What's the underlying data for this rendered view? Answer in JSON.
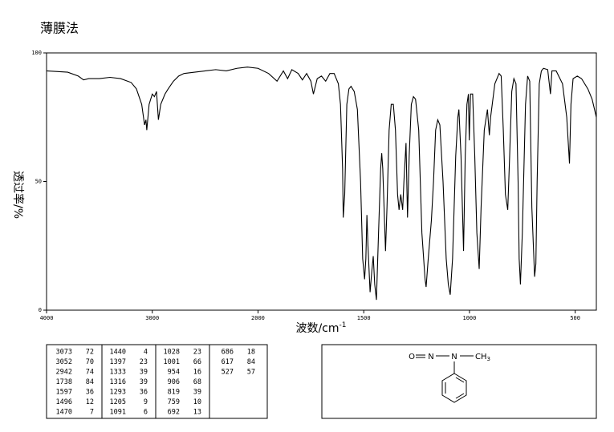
{
  "chart_data": {
    "type": "line",
    "title": "薄膜法",
    "x_label": {
      "text": "波数/cm",
      "superscript": "-1"
    },
    "y_label": "透过率/%",
    "xlim": [
      4000,
      400
    ],
    "ylim": [
      0,
      100
    ],
    "x_scale_change": 2000,
    "xticks": [
      4000,
      3000,
      2000,
      1500,
      1000,
      500
    ],
    "yticks": [
      0,
      50,
      100
    ],
    "color": "#000000",
    "x": [
      4000,
      3800,
      3700,
      3650,
      3600,
      3500,
      3400,
      3300,
      3200,
      3150,
      3100,
      3073,
      3060,
      3052,
      3030,
      3000,
      2980,
      2960,
      2942,
      2920,
      2880,
      2850,
      2800,
      2750,
      2700,
      2600,
      2500,
      2400,
      2300,
      2200,
      2100,
      2000,
      1950,
      1910,
      1880,
      1860,
      1840,
      1810,
      1790,
      1770,
      1750,
      1738,
      1720,
      1700,
      1680,
      1660,
      1640,
      1620,
      1610,
      1600,
      1597,
      1590,
      1580,
      1570,
      1560,
      1545,
      1530,
      1515,
      1505,
      1496,
      1490,
      1485,
      1480,
      1470,
      1462,
      1455,
      1448,
      1440,
      1430,
      1420,
      1415,
      1410,
      1397,
      1390,
      1380,
      1370,
      1360,
      1350,
      1340,
      1333,
      1325,
      1316,
      1310,
      1300,
      1293,
      1285,
      1275,
      1265,
      1255,
      1240,
      1225,
      1210,
      1205,
      1195,
      1180,
      1170,
      1160,
      1150,
      1140,
      1125,
      1110,
      1100,
      1091,
      1080,
      1065,
      1055,
      1050,
      1040,
      1028,
      1020,
      1012,
      1005,
      1001,
      995,
      985,
      975,
      965,
      954,
      945,
      930,
      915,
      906,
      900,
      880,
      860,
      850,
      840,
      830,
      819,
      810,
      800,
      790,
      780,
      770,
      765,
      759,
      750,
      735,
      725,
      715,
      705,
      692,
      686,
      680,
      670,
      660,
      650,
      630,
      617,
      610,
      590,
      560,
      540,
      527,
      520,
      510,
      490,
      470,
      440,
      420,
      400
    ],
    "series": [
      {
        "values": [
          93,
          92.5,
          91,
          89.5,
          90,
          90,
          90.5,
          90,
          88.5,
          86,
          80,
          72,
          74,
          70,
          80,
          84,
          83,
          85,
          74,
          80,
          84,
          86,
          89,
          91,
          92,
          92.5,
          93,
          93.5,
          93,
          94,
          94.5,
          94,
          92,
          89,
          93,
          90,
          93.5,
          92,
          89.5,
          92,
          89,
          84,
          90,
          91,
          89,
          92,
          92,
          88,
          80,
          55,
          36,
          45,
          80,
          86,
          87,
          85,
          78,
          50,
          20,
          12,
          20,
          37,
          25,
          7,
          15,
          21,
          10,
          4,
          30,
          55,
          61,
          55,
          23,
          40,
          70,
          80,
          80,
          70,
          45,
          39,
          45,
          39,
          50,
          65,
          36,
          60,
          80,
          83,
          82,
          70,
          30,
          12,
          9,
          20,
          35,
          50,
          70,
          74,
          72,
          50,
          20,
          10,
          6,
          20,
          60,
          75,
          78,
          60,
          23,
          60,
          80,
          84,
          66,
          84,
          84,
          60,
          30,
          16,
          40,
          70,
          78,
          68,
          75,
          88,
          92,
          91,
          70,
          45,
          39,
          60,
          85,
          90,
          88,
          50,
          20,
          10,
          30,
          80,
          91,
          89,
          40,
          13,
          18,
          50,
          88,
          93,
          94,
          93.5,
          84,
          93,
          93,
          88,
          75,
          57,
          80,
          90,
          91,
          90,
          86,
          82,
          75
        ]
      }
    ]
  },
  "peak_table": [
    [
      [
        3073,
        72
      ],
      [
        3052,
        70
      ],
      [
        2942,
        74
      ],
      [
        1738,
        84
      ],
      [
        1597,
        36
      ],
      [
        1496,
        12
      ],
      [
        1470,
        7
      ]
    ],
    [
      [
        1440,
        4
      ],
      [
        1397,
        23
      ],
      [
        1333,
        39
      ],
      [
        1316,
        39
      ],
      [
        1293,
        36
      ],
      [
        1205,
        9
      ],
      [
        1091,
        6
      ]
    ],
    [
      [
        1028,
        23
      ],
      [
        1001,
        66
      ],
      [
        954,
        16
      ],
      [
        906,
        68
      ],
      [
        819,
        39
      ],
      [
        759,
        10
      ],
      [
        692,
        13
      ]
    ],
    [
      [
        686,
        18
      ],
      [
        617,
        84
      ],
      [
        527,
        57
      ]
    ]
  ],
  "structure": {
    "atoms": [
      "O",
      "N",
      "N"
    ],
    "methyl": {
      "label": "CH",
      "subscript": "3"
    }
  }
}
